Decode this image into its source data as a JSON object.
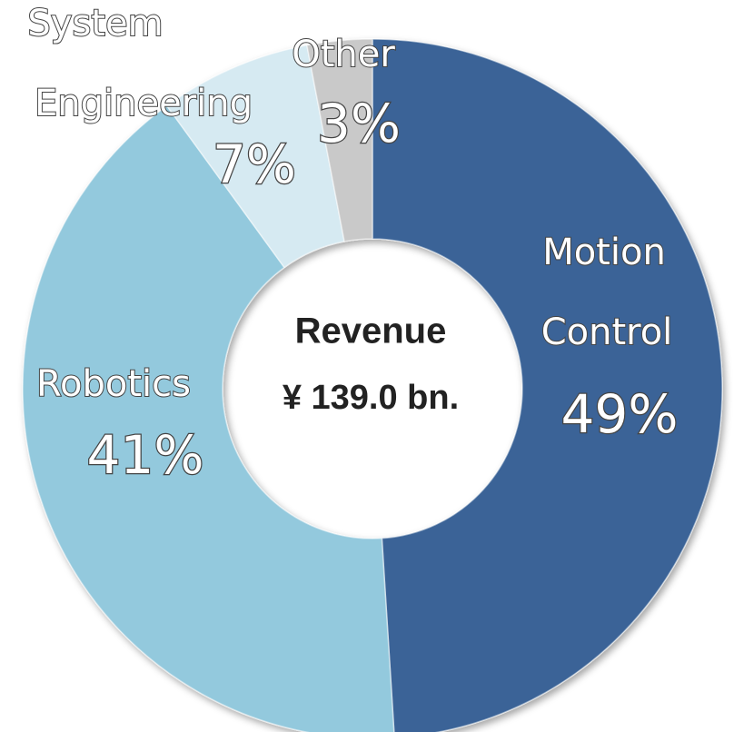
{
  "chart_data": {
    "type": "donut",
    "center_title": "Revenue",
    "center_subtitle": "¥ 139.0 bn.",
    "categories": [
      "Motion Control",
      "Robotics",
      "System Engineering",
      "Other"
    ],
    "values": [
      49,
      41,
      7,
      3
    ],
    "value_labels": [
      "49%",
      "41%",
      "7%",
      "3%"
    ],
    "colors": [
      "#3a6497",
      "#93c9dd",
      "#d6eaf2",
      "#c9c9c9"
    ]
  }
}
